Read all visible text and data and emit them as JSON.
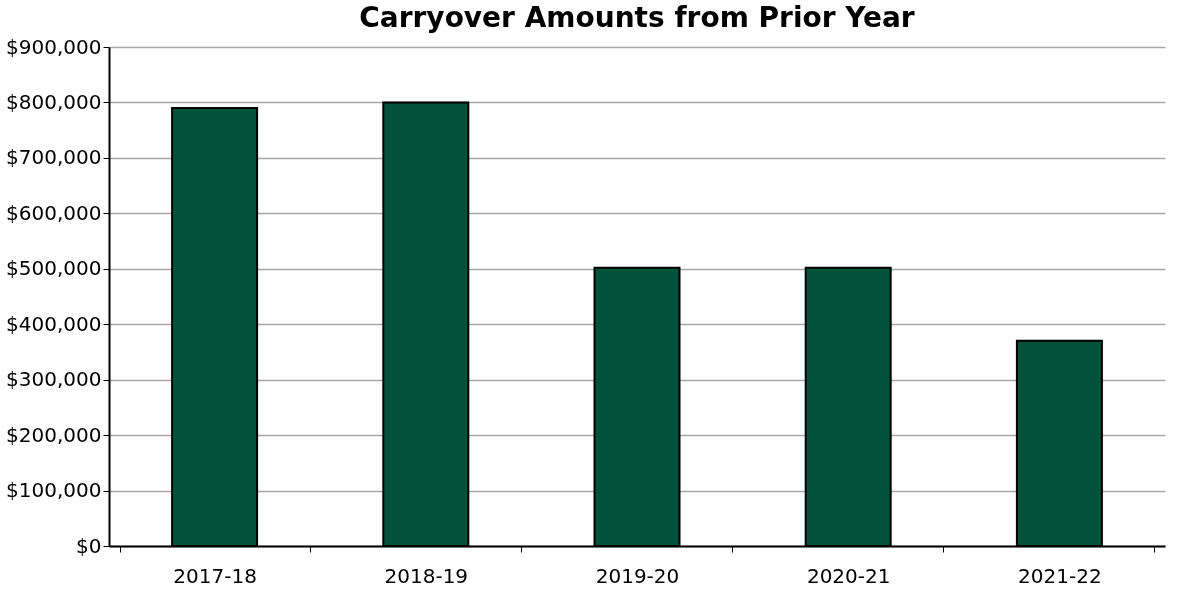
{
  "chart_data": {
    "type": "bar",
    "title": "Carryover Amounts from Prior Year",
    "categories": [
      "2017-18",
      "2018-19",
      "2019-20",
      "2020-21",
      "2021-22"
    ],
    "values": [
      790000,
      800000,
      502000,
      502000,
      370000
    ],
    "color": "#005239",
    "ylim": [
      0,
      900000
    ],
    "yticks": [
      {
        "value": 0,
        "label": "$0"
      },
      {
        "value": 100000,
        "label": "$100,000"
      },
      {
        "value": 200000,
        "label": "$200,000"
      },
      {
        "value": 300000,
        "label": "$300,000"
      },
      {
        "value": 400000,
        "label": "$400,000"
      },
      {
        "value": 500000,
        "label": "$500,000"
      },
      {
        "value": 600000,
        "label": "$600,000"
      },
      {
        "value": 700000,
        "label": "$700,000"
      },
      {
        "value": 800000,
        "label": "$800,000"
      },
      {
        "value": 900000,
        "label": "$900,000"
      }
    ],
    "grid": "y"
  }
}
